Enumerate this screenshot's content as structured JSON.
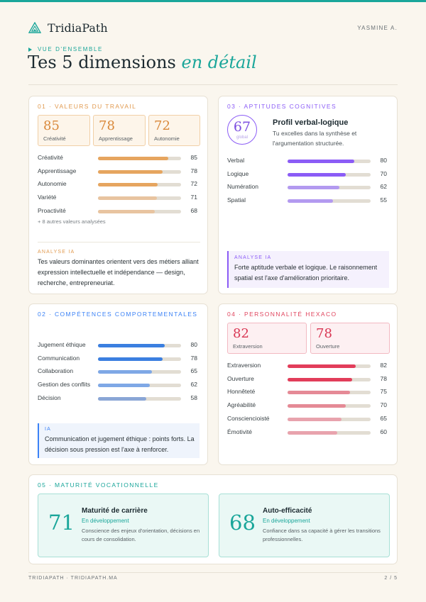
{
  "header": {
    "brand": "TridiaPath",
    "user": "YASMINE A."
  },
  "intro": {
    "eyebrow": "VUE D'ENSEMBLE",
    "title_main": "Tes 5 dimensions",
    "title_accent": "en détail"
  },
  "sections": {
    "work_values": {
      "title": "01 · VALEURS DU TRAVAIL",
      "accent": "#e19a4f",
      "top": [
        {
          "value": "85",
          "label": "Créativité"
        },
        {
          "value": "78",
          "label": "Apprentissage"
        },
        {
          "value": "72",
          "label": "Autonomie"
        }
      ],
      "rows": [
        {
          "label": "Créativité",
          "value": "85",
          "color": "#e6a55f"
        },
        {
          "label": "Apprentissage",
          "value": "78",
          "color": "#e6a55f"
        },
        {
          "label": "Autonomie",
          "value": "72",
          "color": "#e6a55f"
        },
        {
          "label": "Variété",
          "value": "71",
          "color": "#e8c4a0"
        },
        {
          "label": "Proactivité",
          "value": "68",
          "color": "#e8c4a0"
        }
      ],
      "more": "+ 8 autres valeurs analysées",
      "ai_label": "ANALYSE IA",
      "ai_text": "Tes valeurs dominantes orientent vers des métiers alliant expression intellectuelle et indépendance — design, recherche, entrepreneuriat."
    },
    "cognitive": {
      "title": "03 · APTITUDES COGNITIVES",
      "accent": "#8b5cf6",
      "score": "67",
      "score_label": "global",
      "profile_title": "Profil verbal-logique",
      "profile_desc": "Tu excelles dans la synthèse et l'argumentation structurée.",
      "rows": [
        {
          "label": "Verbal",
          "value": "80",
          "color": "#8b5cf6"
        },
        {
          "label": "Logique",
          "value": "70",
          "color": "#8b5cf6"
        },
        {
          "label": "Numération",
          "value": "62",
          "color": "#b39af0"
        },
        {
          "label": "Spatial",
          "value": "55",
          "color": "#b39af0"
        }
      ],
      "ai_label": "ANALYSE IA",
      "ai_text": "Forte aptitude verbale et logique. Le raisonnement spatial est l'axe d'amélioration prioritaire."
    },
    "behavioral": {
      "title": "02 · COMPÉTENCES COMPORTEMENTALES",
      "accent": "#3b82f6",
      "rows": [
        {
          "label": "Jugement éthique",
          "value": "80",
          "color": "#3b7fe0"
        },
        {
          "label": "Communication",
          "value": "78",
          "color": "#3b7fe0"
        },
        {
          "label": "Collaboration",
          "value": "65",
          "color": "#7fa8e6"
        },
        {
          "label": "Gestion des conflits",
          "value": "62",
          "color": "#7fa8e6"
        },
        {
          "label": "Décision",
          "value": "58",
          "color": "#8aa6d6"
        }
      ],
      "ai_label": "IA",
      "ai_text": "Communication et jugement éthique : points forts. La décision sous pression est l'axe à renforcer."
    },
    "hexaco": {
      "title": "04 · PERSONNALITÉ HEXACO",
      "accent": "#e0455e",
      "top": [
        {
          "value": "82",
          "label": "Extraversion"
        },
        {
          "value": "78",
          "label": "Ouverture"
        }
      ],
      "rows": [
        {
          "label": "Extraversion",
          "value": "82",
          "color": "#e23d5a"
        },
        {
          "label": "Ouverture",
          "value": "78",
          "color": "#e23d5a"
        },
        {
          "label": "Honnêteté",
          "value": "75",
          "color": "#e58a96"
        },
        {
          "label": "Agréabilité",
          "value": "70",
          "color": "#e58a96"
        },
        {
          "label": "Consciencioisté",
          "value": "65",
          "color": "#e8a3ad"
        },
        {
          "label": "Émotivité",
          "value": "60",
          "color": "#e8a3ad"
        }
      ]
    },
    "maturity": {
      "title": "05 · MATURITÉ VOCATIONNELLE",
      "accent": "#1aa69a",
      "items": [
        {
          "value": "71",
          "title": "Maturité de carrière",
          "status": "En développement",
          "desc": "Conscience des enjeux d'orientation, décisions en cours de consolidation."
        },
        {
          "value": "68",
          "title": "Auto-efficacité",
          "status": "En développement",
          "desc": "Confiance dans sa capacité à gérer les transitions professionnelles."
        }
      ]
    }
  },
  "footer": {
    "left": "TRIDIAPATH · TRIDIAPATH.MA",
    "right": "2 / 5"
  }
}
